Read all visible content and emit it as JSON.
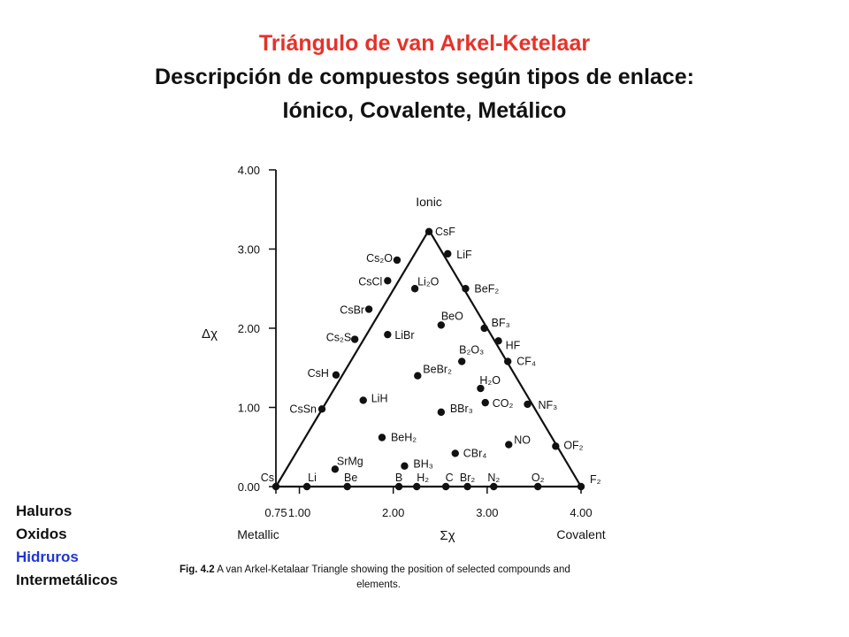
{
  "title": {
    "line1": "Triángulo de van Arkel-Ketelaar",
    "line2": "Descripción de compuestos según tipos de enlace:",
    "line3": "Iónico, Covalente, Metálico"
  },
  "colors": {
    "title_accent": "#e4332a",
    "hidruros": "#1f35d6",
    "text": "#111111"
  },
  "legend": [
    {
      "label": "Haluros",
      "color": "#111111"
    },
    {
      "label": "Oxidos",
      "color": "#111111"
    },
    {
      "label": "Hidruros",
      "color": "#1f35d6"
    },
    {
      "label": "Intermetálicos",
      "color": "#111111"
    }
  ],
  "caption": {
    "fig": "Fig. 4.2",
    "text": "A van Arkel-Ketalaar Triangle showing the position of selected compounds and",
    "text2": "elements."
  },
  "chart_data": {
    "type": "scatter",
    "xlabel": "Σχ",
    "ylabel": "Δχ",
    "xlim": [
      0.75,
      4.0
    ],
    "ylim": [
      0.0,
      4.0
    ],
    "xticks": [
      "0.75",
      "1.00",
      "2.00",
      "3.00",
      "4.00"
    ],
    "yticks": [
      "0.00",
      "1.00",
      "2.00",
      "3.00",
      "4.00"
    ],
    "corner_labels": {
      "top": "Ionic",
      "left": "Metallic",
      "right": "Covalent"
    },
    "triangle": [
      [
        0.75,
        0.0
      ],
      [
        2.38,
        3.24
      ],
      [
        4.0,
        0.0
      ]
    ],
    "points": [
      {
        "label": "CsF",
        "x": 2.38,
        "y": 3.22
      },
      {
        "label": "LiF",
        "x": 2.58,
        "y": 2.94
      },
      {
        "label": "Cs₂O",
        "x": 2.04,
        "y": 2.86
      },
      {
        "label": "CsCl",
        "x": 1.94,
        "y": 2.6
      },
      {
        "label": "Li₂O",
        "x": 2.23,
        "y": 2.5
      },
      {
        "label": "BeF₂",
        "x": 2.77,
        "y": 2.5
      },
      {
        "label": "CsBr",
        "x": 1.74,
        "y": 2.24
      },
      {
        "label": "BeO",
        "x": 2.51,
        "y": 2.04
      },
      {
        "label": "BF₃",
        "x": 2.97,
        "y": 2.0
      },
      {
        "label": "LiBr",
        "x": 1.94,
        "y": 1.92
      },
      {
        "label": "Cs₂S",
        "x": 1.59,
        "y": 1.86
      },
      {
        "label": "HF",
        "x": 3.12,
        "y": 1.84
      },
      {
        "label": "B₂O₃",
        "x": 2.73,
        "y": 1.58
      },
      {
        "label": "CF₄",
        "x": 3.22,
        "y": 1.58
      },
      {
        "label": "CsH",
        "x": 1.39,
        "y": 1.41
      },
      {
        "label": "BeBr₂",
        "x": 2.26,
        "y": 1.4
      },
      {
        "label": "H₂O",
        "x": 2.93,
        "y": 1.24
      },
      {
        "label": "LiH",
        "x": 1.68,
        "y": 1.09
      },
      {
        "label": "CO₂",
        "x": 2.98,
        "y": 1.06
      },
      {
        "label": "NF₃",
        "x": 3.43,
        "y": 1.04
      },
      {
        "label": "CsSn",
        "x": 1.24,
        "y": 0.98
      },
      {
        "label": "BBr₃",
        "x": 2.51,
        "y": 0.94
      },
      {
        "label": "BeH₂",
        "x": 1.88,
        "y": 0.62
      },
      {
        "label": "NO",
        "x": 3.23,
        "y": 0.53
      },
      {
        "label": "OF₂",
        "x": 3.73,
        "y": 0.51
      },
      {
        "label": "CBr₄",
        "x": 2.66,
        "y": 0.42
      },
      {
        "label": "BH₃",
        "x": 2.12,
        "y": 0.26
      },
      {
        "label": "SrMg",
        "x": 1.38,
        "y": 0.22
      },
      {
        "label": "Cs",
        "x": 0.75,
        "y": 0.0
      },
      {
        "label": "Li",
        "x": 1.08,
        "y": 0.0
      },
      {
        "label": "Be",
        "x": 1.51,
        "y": 0.0
      },
      {
        "label": "B",
        "x": 2.06,
        "y": 0.0
      },
      {
        "label": "H₂",
        "x": 2.25,
        "y": 0.0
      },
      {
        "label": "C",
        "x": 2.56,
        "y": 0.0
      },
      {
        "label": "Br₂",
        "x": 2.79,
        "y": 0.0
      },
      {
        "label": "N₂",
        "x": 3.07,
        "y": 0.0
      },
      {
        "label": "O₂",
        "x": 3.54,
        "y": 0.0
      },
      {
        "label": "F₂",
        "x": 4.0,
        "y": 0.0
      }
    ]
  }
}
